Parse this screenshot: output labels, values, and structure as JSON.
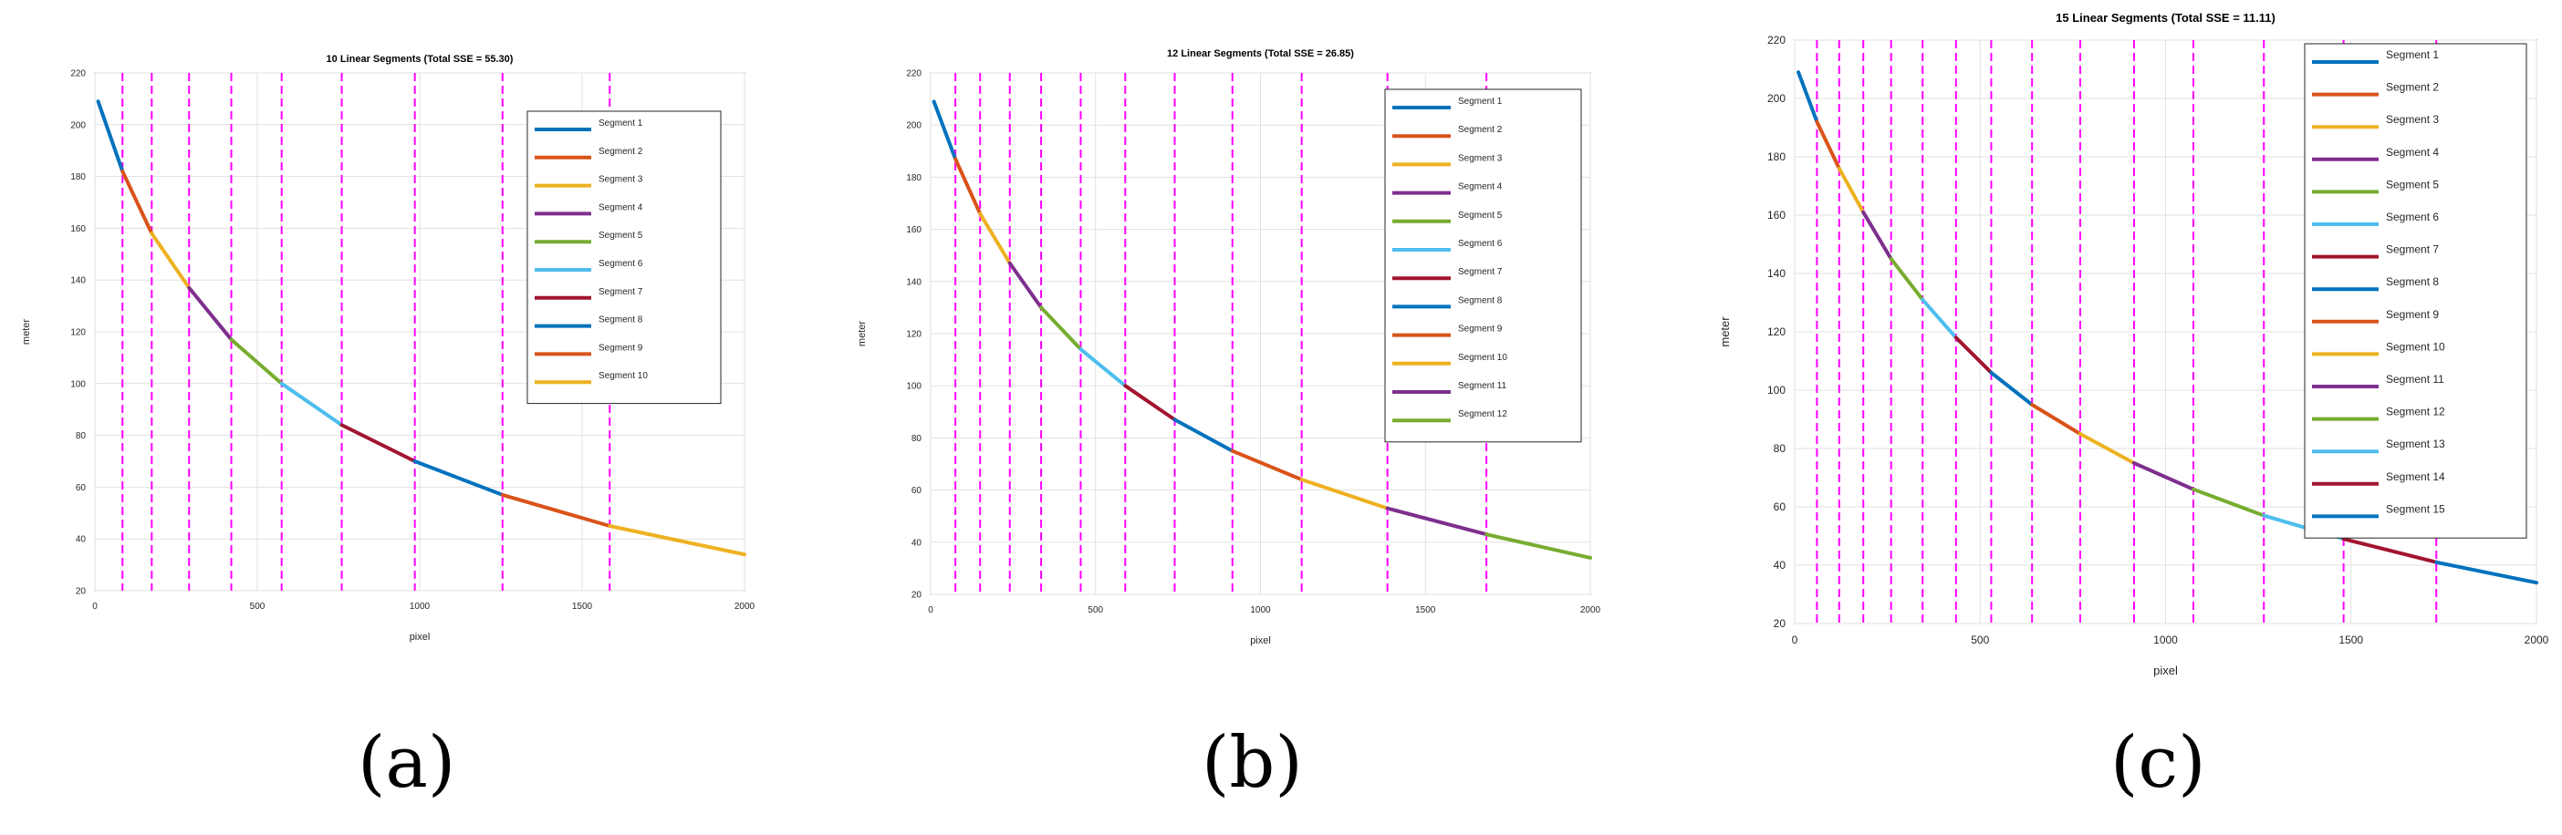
{
  "segment_colors": [
    "#0072BD",
    "#D95319",
    "#EDB120",
    "#7E2F8E",
    "#77AC30",
    "#4DBEEE",
    "#A2142F"
  ],
  "boundary_color": "#FF00FF",
  "charts": [
    {
      "panel_label": "(a)",
      "chart_data": {
        "type": "line",
        "title": "10 Linear Segments (Total SSE = 55.30)",
        "xlabel": "pixel",
        "ylabel": "meter",
        "xlim": [
          0,
          2000
        ],
        "ylim": [
          20,
          220
        ],
        "x_ticks": [
          "0",
          "500",
          "1000",
          "1500",
          "2000"
        ],
        "y_ticks": [
          "20",
          "40",
          "60",
          "80",
          "100",
          "120",
          "140",
          "160",
          "180",
          "200",
          "220"
        ],
        "grid": true,
        "legend_position": "top-right",
        "breakpoints": [
          [
            10,
            209
          ],
          [
            85,
            182
          ],
          [
            175,
            158
          ],
          [
            290,
            137
          ],
          [
            420,
            117
          ],
          [
            575,
            100
          ],
          [
            760,
            84
          ],
          [
            985,
            70
          ],
          [
            1255,
            57
          ],
          [
            1585,
            45
          ],
          [
            2000,
            34
          ]
        ],
        "boundaries": [
          85,
          175,
          290,
          420,
          575,
          760,
          985,
          1255,
          1585
        ],
        "series": [
          {
            "name": "Segment 1"
          },
          {
            "name": "Segment 2"
          },
          {
            "name": "Segment 3"
          },
          {
            "name": "Segment 4"
          },
          {
            "name": "Segment 5"
          },
          {
            "name": "Segment 6"
          },
          {
            "name": "Segment 7"
          },
          {
            "name": "Segment 8"
          },
          {
            "name": "Segment 9"
          },
          {
            "name": "Segment 10"
          }
        ]
      }
    },
    {
      "panel_label": "(b)",
      "chart_data": {
        "type": "line",
        "title": "12 Linear Segments (Total SSE = 26.85)",
        "xlabel": "pixel",
        "ylabel": "meter",
        "xlim": [
          0,
          2000
        ],
        "ylim": [
          20,
          220
        ],
        "x_ticks": [
          "0",
          "500",
          "1000",
          "1500",
          "2000"
        ],
        "y_ticks": [
          "20",
          "40",
          "60",
          "80",
          "100",
          "120",
          "140",
          "160",
          "180",
          "200",
          "220"
        ],
        "grid": true,
        "legend_position": "top-right",
        "breakpoints": [
          [
            10,
            209
          ],
          [
            75,
            187
          ],
          [
            150,
            166
          ],
          [
            240,
            147
          ],
          [
            335,
            130
          ],
          [
            455,
            114
          ],
          [
            590,
            100
          ],
          [
            740,
            87
          ],
          [
            915,
            75
          ],
          [
            1125,
            64
          ],
          [
            1385,
            53
          ],
          [
            1685,
            43
          ],
          [
            2000,
            34
          ]
        ],
        "boundaries": [
          75,
          150,
          240,
          335,
          455,
          590,
          740,
          915,
          1125,
          1385,
          1685
        ],
        "series": [
          {
            "name": "Segment 1"
          },
          {
            "name": "Segment 2"
          },
          {
            "name": "Segment 3"
          },
          {
            "name": "Segment 4"
          },
          {
            "name": "Segment 5"
          },
          {
            "name": "Segment 6"
          },
          {
            "name": "Segment 7"
          },
          {
            "name": "Segment 8"
          },
          {
            "name": "Segment 9"
          },
          {
            "name": "Segment 10"
          },
          {
            "name": "Segment 11"
          },
          {
            "name": "Segment 12"
          }
        ]
      }
    },
    {
      "panel_label": "(c)",
      "chart_data": {
        "type": "line",
        "title": "15 Linear Segments (Total SSE = 11.11)",
        "xlabel": "pixel",
        "ylabel": "meter",
        "xlim": [
          0,
          2000
        ],
        "ylim": [
          20,
          220
        ],
        "x_ticks": [
          "0",
          "500",
          "1000",
          "1500",
          "2000"
        ],
        "y_ticks": [
          "20",
          "40",
          "60",
          "80",
          "100",
          "120",
          "140",
          "160",
          "180",
          "200",
          "220"
        ],
        "grid": true,
        "legend_position": "top-right",
        "breakpoints": [
          [
            10,
            209
          ],
          [
            60,
            192
          ],
          [
            120,
            176
          ],
          [
            185,
            161
          ],
          [
            260,
            145
          ],
          [
            345,
            131
          ],
          [
            435,
            118
          ],
          [
            530,
            106
          ],
          [
            640,
            95
          ],
          [
            770,
            85
          ],
          [
            915,
            75
          ],
          [
            1075,
            66
          ],
          [
            1265,
            57
          ],
          [
            1480,
            49
          ],
          [
            1730,
            41
          ],
          [
            2000,
            34
          ]
        ],
        "boundaries": [
          60,
          120,
          185,
          260,
          345,
          435,
          530,
          640,
          770,
          915,
          1075,
          1265,
          1480,
          1730
        ],
        "series": [
          {
            "name": "Segment 1"
          },
          {
            "name": "Segment 2"
          },
          {
            "name": "Segment 3"
          },
          {
            "name": "Segment 4"
          },
          {
            "name": "Segment 5"
          },
          {
            "name": "Segment 6"
          },
          {
            "name": "Segment 7"
          },
          {
            "name": "Segment 8"
          },
          {
            "name": "Segment 9"
          },
          {
            "name": "Segment 10"
          },
          {
            "name": "Segment 11"
          },
          {
            "name": "Segment 12"
          },
          {
            "name": "Segment 13"
          },
          {
            "name": "Segment 14"
          },
          {
            "name": "Segment 15"
          }
        ]
      }
    }
  ]
}
